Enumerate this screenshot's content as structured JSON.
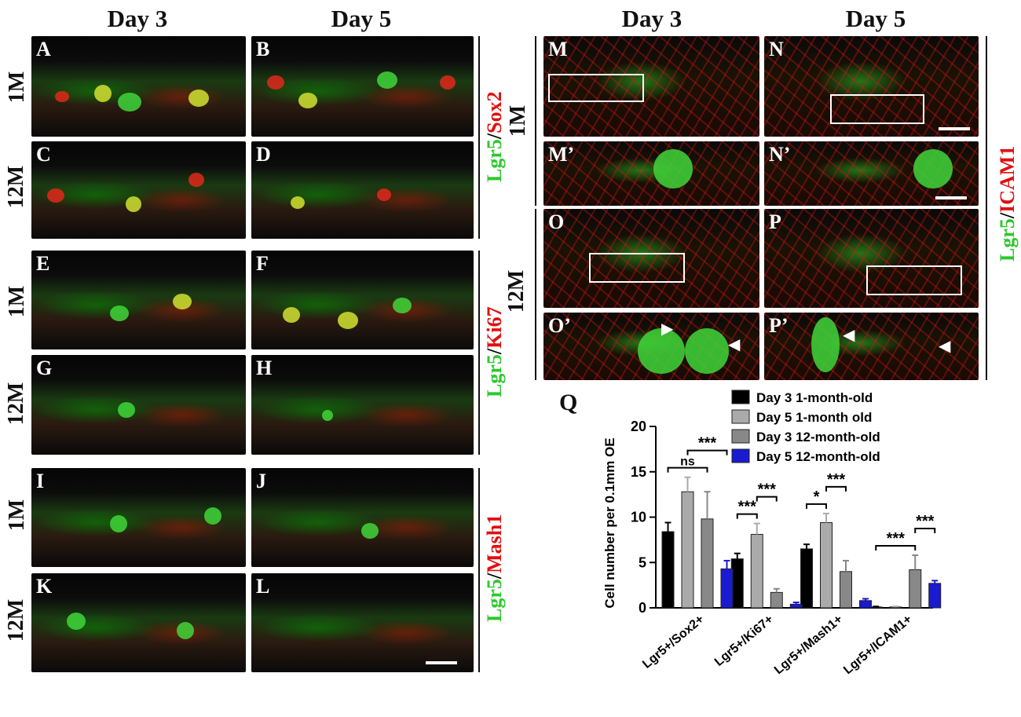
{
  "left_columns": [
    "Day 3",
    "Day 5"
  ],
  "right_columns": [
    "Day 3",
    "Day 5"
  ],
  "left_rows": [
    "1M",
    "12M",
    "1M",
    "12M",
    "1M",
    "12M"
  ],
  "right_rows": [
    "1M",
    "12M"
  ],
  "left_panels": [
    "A",
    "B",
    "C",
    "D",
    "E",
    "F",
    "G",
    "H",
    "I",
    "J",
    "K",
    "L"
  ],
  "right_panels": [
    "M",
    "N",
    "M’",
    "N’",
    "O",
    "P",
    "O’",
    "P’"
  ],
  "stains": {
    "sox2": {
      "a": "Lgr5",
      "sep": "/",
      "b": "Sox2"
    },
    "ki67": {
      "a": "Lgr5",
      "sep": "/",
      "b": "Ki67"
    },
    "mash1": {
      "a": "Lgr5",
      "sep": "/",
      "b": "Mash1"
    },
    "icam1": {
      "a": "Lgr5",
      "sep": "/",
      "b": "ICAM1"
    }
  },
  "colors": {
    "green": "#2dc82d",
    "red": "#e01010"
  },
  "panel_q_letter": "Q",
  "chart_data": {
    "type": "bar",
    "categories": [
      "Lgr5+/Sox2+",
      "Lgr5+/Ki67+",
      "Lgr5+/Mash1+",
      "Lgr5+/ICAM1+"
    ],
    "ylabel": "Cell number per 0.1mm OE",
    "ylim": [
      0,
      20
    ],
    "yticks": [
      0,
      5,
      10,
      15,
      20
    ],
    "legend_position": "top-right",
    "series": [
      {
        "name": "Day 3 1-month-old",
        "color": "#000000",
        "values": [
          8.4,
          5.4,
          6.5,
          0.1
        ],
        "errors": [
          1.0,
          0.6,
          0.5,
          0.05
        ]
      },
      {
        "name": "Day 5 1-month old",
        "color": "#aaaaaa",
        "values": [
          12.8,
          8.1,
          9.4,
          0.1
        ],
        "errors": [
          1.6,
          1.2,
          1.0,
          0.05
        ]
      },
      {
        "name": "Day 3 12-month-old",
        "color": "#888888",
        "values": [
          9.8,
          1.7,
          4.0,
          4.2
        ],
        "errors": [
          3.0,
          0.4,
          1.2,
          1.6
        ]
      },
      {
        "name": "Day 5 12-month-old",
        "color": "#1a1ad0",
        "values": [
          4.3,
          0.4,
          0.8,
          2.7
        ],
        "errors": [
          0.9,
          0.2,
          0.2,
          0.3
        ]
      }
    ],
    "significance": [
      {
        "label": "ns",
        "category": 0,
        "from_series": 0,
        "to_series": 2
      },
      {
        "label": "***",
        "category": 0,
        "from_series": 1,
        "to_series": 3
      },
      {
        "label": "***",
        "category": 1,
        "from_series": 0,
        "to_series": 1
      },
      {
        "label": "***",
        "category": 1,
        "from_series": 1,
        "to_series": 2
      },
      {
        "label": "*",
        "category": 2,
        "from_series": 0,
        "to_series": 1
      },
      {
        "label": "***",
        "category": 2,
        "from_series": 1,
        "to_series": 2
      },
      {
        "label": "***",
        "category": 3,
        "from_series": 0,
        "to_series": 2
      },
      {
        "label": "***",
        "category": 3,
        "from_series": 2,
        "to_series": 3
      }
    ]
  }
}
